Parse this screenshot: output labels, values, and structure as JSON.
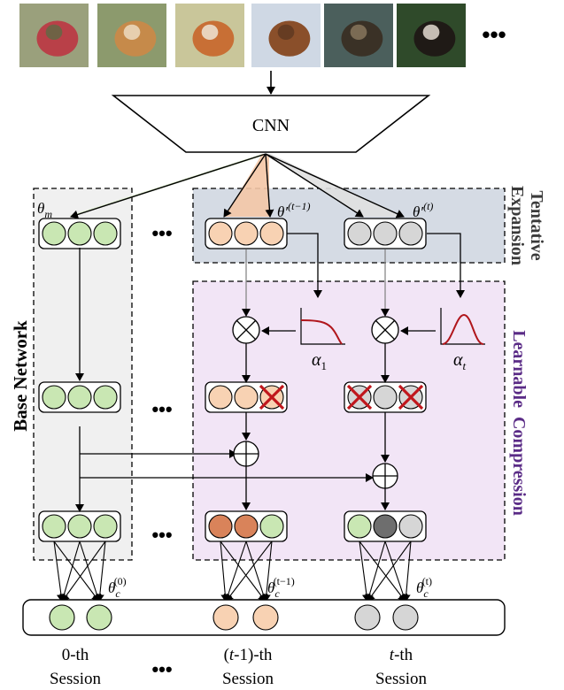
{
  "images": [
    {
      "name": "bicycle",
      "colors": [
        "#9aa07c",
        "#b94048",
        "#5d6a45"
      ]
    },
    {
      "name": "shiba-dog",
      "colors": [
        "#8c9a6d",
        "#c68a4a",
        "#efe0c8"
      ]
    },
    {
      "name": "fox",
      "colors": [
        "#c9c69a",
        "#c86f35",
        "#f0ece0"
      ]
    },
    {
      "name": "horse",
      "colors": [
        "#cfd8e4",
        "#8a4f2a",
        "#5d3720"
      ]
    },
    {
      "name": "otter",
      "colors": [
        "#4b5f5c",
        "#3a3126",
        "#8c7a60"
      ]
    },
    {
      "name": "ferret",
      "colors": [
        "#2f4a2a",
        "#1f1a16",
        "#efe6dc"
      ]
    }
  ],
  "labels": {
    "images_ellipsis": "•••",
    "cnn": "CNN",
    "theta_m": "θ",
    "theta_m_sub": "m",
    "theta_t1": "θ′",
    "theta_t1_sup": "(t−1)",
    "theta_t": "θ′",
    "theta_t_sup": "(t)",
    "tentative_expansion_line1": "Tentative",
    "tentative_expansion_line2": "Expansion",
    "learnable_compression": "Learnable  Compression",
    "base_network": "Base Network",
    "alpha_1": "α",
    "alpha_1_sub": "1",
    "alpha_t": "α",
    "alpha_t_sub": "t",
    "theta_c0": "θ",
    "theta_c0_sub": "c",
    "theta_c0_sup": "(0)",
    "theta_ct1": "θ",
    "theta_ct1_sub": "c",
    "theta_ct1_sup": "(t−1)",
    "theta_ct": "θ",
    "theta_ct_sub": "c",
    "theta_ct_sup": "(t)",
    "dots": "•••",
    "session_0": "0-th",
    "session_t1_a": "(",
    "session_t1_b": "t",
    "session_t1_c": "-1)-th",
    "session_t_a": "t",
    "session_t_b": "-th",
    "session_word": "Session"
  },
  "colors": {
    "green": "#c9e7b3",
    "orange_light": "#f8d2b3",
    "orange_dark": "#d9835a",
    "gray_light": "#d6d6d6",
    "gray_dark": "#6e6e6e",
    "base_bg": "#f0f0f0",
    "tentative_bg": "#d5dbe4",
    "learnable_bg": "#f2e5f6",
    "purple_text": "#5a2b86",
    "curve_red": "#b0161c",
    "cross_red": "#c0161c"
  }
}
